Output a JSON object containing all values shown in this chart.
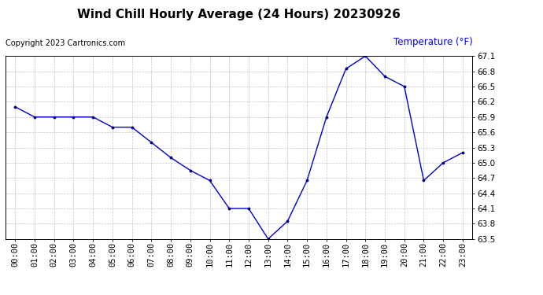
{
  "title": "Wind Chill Hourly Average (24 Hours) 20230926",
  "copyright": "Copyright 2023 Cartronics.com",
  "legend_label": "Temperature (°F)",
  "x_labels": [
    "00:00",
    "01:00",
    "02:00",
    "03:00",
    "04:00",
    "05:00",
    "06:00",
    "07:00",
    "08:00",
    "09:00",
    "10:00",
    "11:00",
    "12:00",
    "13:00",
    "14:00",
    "15:00",
    "16:00",
    "17:00",
    "18:00",
    "19:00",
    "20:00",
    "21:00",
    "22:00",
    "23:00"
  ],
  "y_values": [
    66.1,
    65.9,
    65.9,
    65.9,
    65.9,
    65.7,
    65.7,
    65.4,
    65.1,
    64.85,
    64.65,
    64.1,
    64.1,
    63.5,
    63.85,
    64.65,
    65.9,
    66.85,
    67.1,
    66.7,
    66.5,
    64.65,
    65.0,
    65.2
  ],
  "ylim_min": 63.5,
  "ylim_max": 67.1,
  "yticks": [
    63.5,
    63.8,
    64.1,
    64.4,
    64.7,
    65.0,
    65.3,
    65.6,
    65.9,
    66.2,
    66.5,
    66.8,
    67.1
  ],
  "line_color": "#0000CC",
  "marker": ".",
  "marker_color": "#000080",
  "grid_color": "#aaaaaa",
  "background_color": "#ffffff",
  "title_fontsize": 11,
  "copyright_fontsize": 7,
  "legend_fontsize": 8.5,
  "tick_fontsize": 7.5
}
